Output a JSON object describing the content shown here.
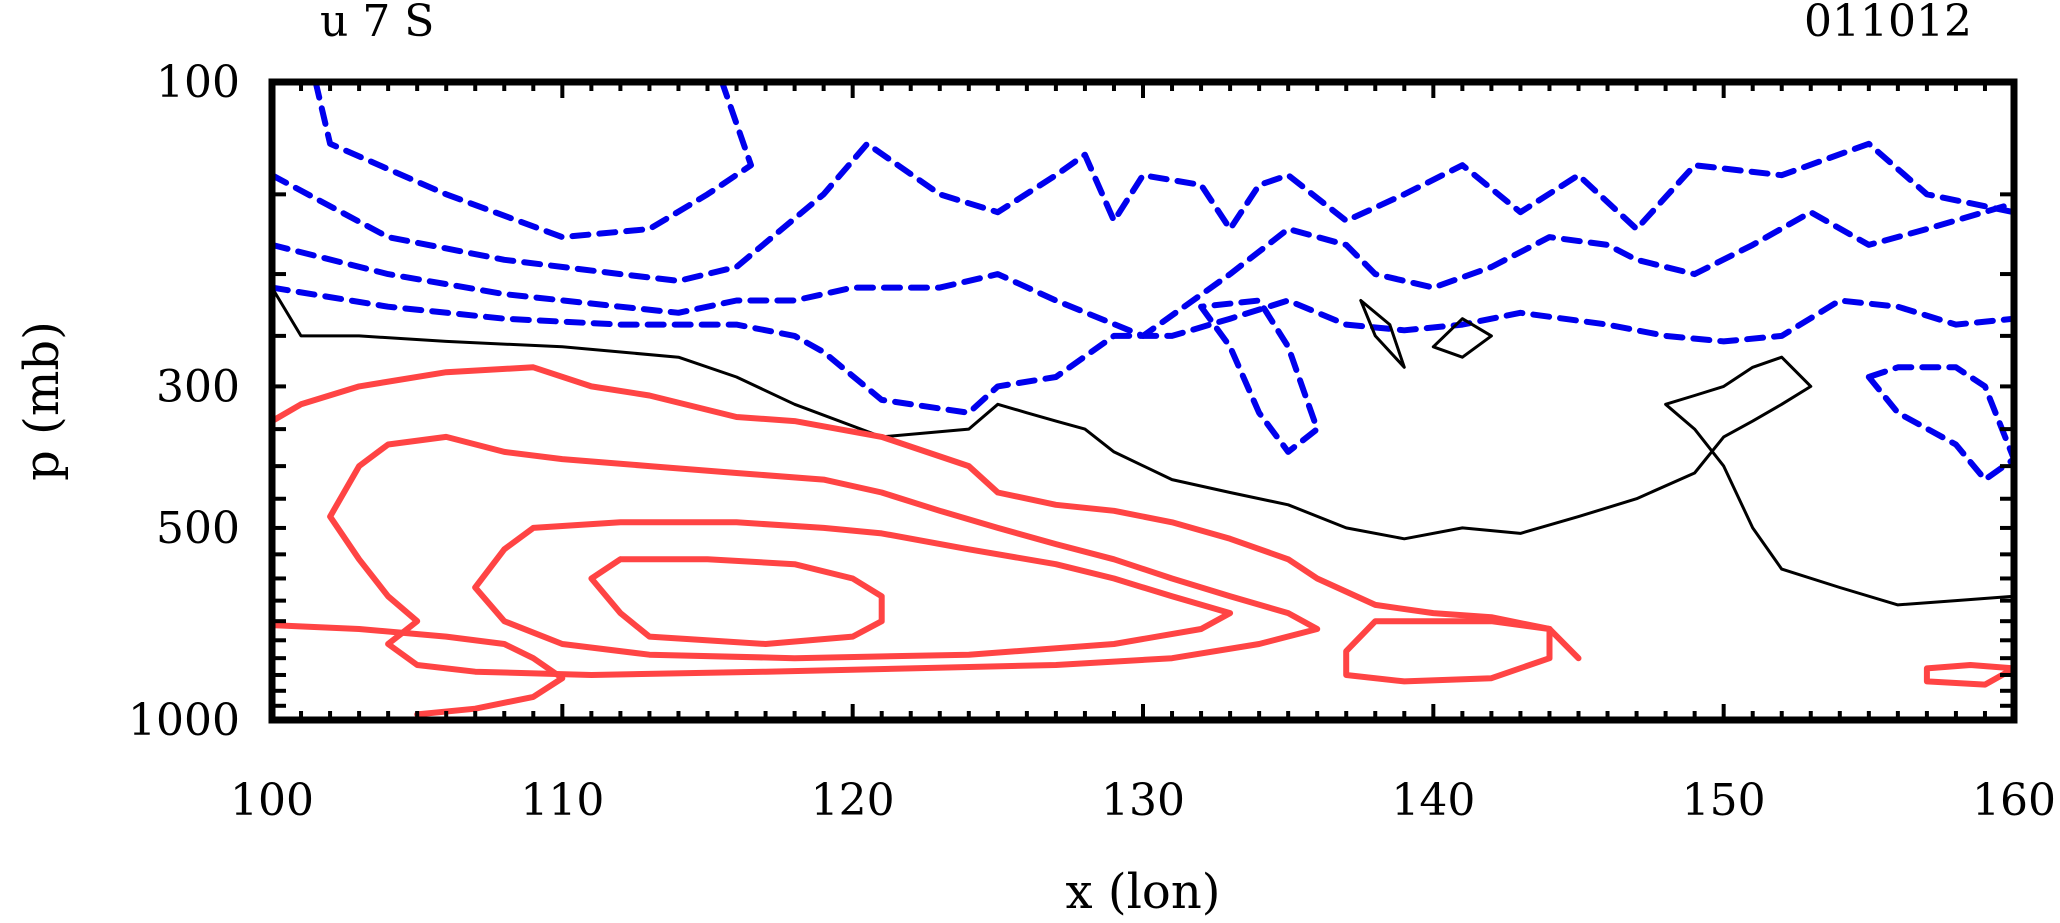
{
  "chart_data": {
    "type": "contour",
    "title_left": "u 7 S",
    "title_right": "011012",
    "xlabel": "x (lon)",
    "ylabel": "p (mb)",
    "xlim": [
      100,
      160
    ],
    "ylim": [
      1000,
      100
    ],
    "y_scale": "log",
    "x_ticks": [
      "100",
      "110",
      "120",
      "130",
      "140",
      "150",
      "160"
    ],
    "y_ticks": [
      "100",
      "300",
      "500",
      "1000"
    ],
    "colors": {
      "negative": "#0000ee",
      "zero": "#000000",
      "positive": "#ff4444"
    },
    "series": [
      {
        "sign": "negative",
        "style": "dashed",
        "contours": [
          [
            [
              101.5,
              100
            ],
            [
              102,
              125
            ],
            [
              106,
              150
            ],
            [
              110,
              175
            ],
            [
              113,
              170
            ],
            [
              115,
              150
            ],
            [
              116.5,
              135
            ],
            [
              115.5,
              100
            ]
          ],
          [
            [
              100,
              140
            ],
            [
              104,
              175
            ],
            [
              108,
              190
            ],
            [
              112,
              200
            ],
            [
              114,
              205
            ],
            [
              116,
              195
            ],
            [
              119,
              150
            ],
            [
              120.5,
              125
            ],
            [
              123,
              150
            ],
            [
              125,
              160
            ],
            [
              127,
              140
            ],
            [
              128,
              130
            ],
            [
              129,
              165
            ],
            [
              130,
              140
            ],
            [
              132,
              145
            ],
            [
              133,
              170
            ],
            [
              134,
              145
            ],
            [
              135,
              140
            ],
            [
              137,
              165
            ],
            [
              139,
              150
            ],
            [
              141,
              135
            ],
            [
              143,
              160
            ],
            [
              145,
              140
            ],
            [
              147,
              170
            ],
            [
              149,
              135
            ],
            [
              152,
              140
            ],
            [
              155,
              125
            ],
            [
              157,
              150
            ],
            [
              160,
              160
            ]
          ],
          [
            [
              100,
              180
            ],
            [
              104,
              200
            ],
            [
              108,
              215
            ],
            [
              112,
              225
            ],
            [
              114,
              230
            ],
            [
              116,
              220
            ],
            [
              118,
              220
            ],
            [
              120,
              210
            ],
            [
              123,
              210
            ],
            [
              125,
              200
            ],
            [
              127,
              220
            ],
            [
              130,
              250
            ],
            [
              133,
              200
            ],
            [
              135,
              170
            ],
            [
              137,
              180
            ],
            [
              138,
              200
            ],
            [
              140,
              210
            ],
            [
              142,
              195
            ],
            [
              144,
              175
            ],
            [
              146,
              180
            ],
            [
              147,
              190
            ],
            [
              149,
              200
            ],
            [
              151,
              180
            ],
            [
              153,
              160
            ],
            [
              155,
              180
            ],
            [
              157,
              170
            ],
            [
              160,
              155
            ]
          ],
          [
            [
              100,
              210
            ],
            [
              104,
              225
            ],
            [
              108,
              235
            ],
            [
              112,
              240
            ],
            [
              116,
              240
            ],
            [
              118,
              250
            ],
            [
              119,
              265
            ],
            [
              121,
              315
            ],
            [
              124,
              330
            ],
            [
              125,
              300
            ],
            [
              127,
              290
            ],
            [
              129,
              250
            ],
            [
              131,
              250
            ],
            [
              133,
              235
            ],
            [
              135,
              220
            ],
            [
              137,
              240
            ],
            [
              139,
              245
            ],
            [
              141,
              240
            ],
            [
              143,
              230
            ],
            [
              146,
              240
            ],
            [
              148,
              250
            ],
            [
              150,
              255
            ],
            [
              152,
              250
            ],
            [
              154,
              220
            ],
            [
              156,
              225
            ],
            [
              158,
              240
            ],
            [
              160,
              235
            ]
          ],
          [
            [
              132,
              225
            ],
            [
              133,
              260
            ],
            [
              134,
              330
            ],
            [
              135,
              380
            ],
            [
              136,
              350
            ],
            [
              135,
              260
            ],
            [
              134,
              220
            ],
            [
              132,
              225
            ]
          ],
          [
            [
              155,
              290
            ],
            [
              156,
              330
            ],
            [
              158,
              370
            ],
            [
              159,
              420
            ],
            [
              160,
              390
            ],
            [
              159,
              300
            ],
            [
              158,
              280
            ],
            [
              156,
              280
            ],
            [
              155,
              290
            ]
          ]
        ]
      },
      {
        "sign": "zero",
        "style": "solid",
        "contours": [
          [
            [
              100,
              210
            ],
            [
              101,
              250
            ],
            [
              103,
              250
            ],
            [
              106,
              255
            ],
            [
              110,
              260
            ],
            [
              114,
              270
            ],
            [
              116,
              290
            ],
            [
              118,
              320
            ],
            [
              121,
              360
            ],
            [
              124,
              350
            ],
            [
              125,
              320
            ],
            [
              126,
              330
            ],
            [
              127,
              340
            ],
            [
              128,
              350
            ],
            [
              129,
              380
            ],
            [
              131,
              420
            ],
            [
              133,
              440
            ],
            [
              135,
              460
            ],
            [
              137,
              500
            ],
            [
              139,
              520
            ],
            [
              141,
              500
            ],
            [
              143,
              510
            ],
            [
              145,
              480
            ],
            [
              147,
              450
            ],
            [
              149,
              410
            ],
            [
              150,
              360
            ],
            [
              151,
              340
            ],
            [
              152,
              320
            ],
            [
              153,
              300
            ],
            [
              152,
              270
            ],
            [
              151,
              280
            ],
            [
              150,
              300
            ],
            [
              149,
              310
            ],
            [
              148,
              320
            ],
            [
              149,
              350
            ],
            [
              150,
              400
            ],
            [
              151,
              500
            ],
            [
              152,
              580
            ],
            [
              154,
              620
            ],
            [
              156,
              660
            ],
            [
              158,
              650
            ],
            [
              160,
              640
            ]
          ],
          [
            [
              137.5,
              220
            ],
            [
              138,
              250
            ],
            [
              139,
              280
            ],
            [
              138.5,
              240
            ],
            [
              137.5,
              220
            ]
          ],
          [
            [
              140,
              260
            ],
            [
              141,
              270
            ],
            [
              142,
              250
            ],
            [
              141,
              235
            ],
            [
              140,
              260
            ]
          ]
        ]
      },
      {
        "sign": "positive",
        "style": "solid",
        "contours": [
          [
            [
              100,
              340
            ],
            [
              101,
              320
            ],
            [
              103,
              300
            ],
            [
              106,
              285
            ],
            [
              109,
              280
            ],
            [
              111,
              300
            ],
            [
              113,
              310
            ],
            [
              116,
              335
            ],
            [
              118,
              340
            ],
            [
              121,
              360
            ],
            [
              124,
              400
            ],
            [
              125,
              440
            ],
            [
              127,
              460
            ],
            [
              129,
              470
            ],
            [
              131,
              490
            ],
            [
              133,
              520
            ],
            [
              135,
              560
            ],
            [
              136,
              600
            ],
            [
              138,
              660
            ],
            [
              140,
              680
            ],
            [
              142,
              690
            ],
            [
              144,
              720
            ],
            [
              145,
              800
            ]
          ],
          [
            [
              103,
              400
            ],
            [
              104,
              370
            ],
            [
              106,
              360
            ],
            [
              108,
              380
            ],
            [
              110,
              390
            ],
            [
              113,
              400
            ],
            [
              116,
              410
            ],
            [
              119,
              420
            ],
            [
              121,
              440
            ],
            [
              123,
              470
            ],
            [
              125,
              500
            ],
            [
              127,
              530
            ],
            [
              129,
              560
            ],
            [
              131,
              600
            ],
            [
              133,
              640
            ],
            [
              135,
              680
            ],
            [
              136,
              720
            ],
            [
              134,
              760
            ],
            [
              131,
              800
            ],
            [
              127,
              820
            ],
            [
              122,
              830
            ],
            [
              117,
              840
            ],
            [
              111,
              850
            ],
            [
              107,
              840
            ],
            [
              105,
              820
            ],
            [
              104,
              760
            ],
            [
              105,
              700
            ],
            [
              104,
              640
            ],
            [
              103,
              560
            ],
            [
              102,
              480
            ],
            [
              103,
              400
            ]
          ],
          [
            [
              109,
              500
            ],
            [
              112,
              490
            ],
            [
              116,
              490
            ],
            [
              119,
              500
            ],
            [
              121,
              510
            ],
            [
              124,
              540
            ],
            [
              127,
              570
            ],
            [
              129,
              600
            ],
            [
              131,
              640
            ],
            [
              133,
              680
            ],
            [
              132,
              720
            ],
            [
              129,
              760
            ],
            [
              124,
              790
            ],
            [
              118,
              800
            ],
            [
              113,
              790
            ],
            [
              110,
              760
            ],
            [
              108,
              700
            ],
            [
              107,
              620
            ],
            [
              108,
              540
            ],
            [
              109,
              500
            ]
          ],
          [
            [
              112,
              560
            ],
            [
              115,
              560
            ],
            [
              118,
              570
            ],
            [
              120,
              600
            ],
            [
              121,
              640
            ],
            [
              121,
              700
            ],
            [
              120,
              740
            ],
            [
              117,
              760
            ],
            [
              113,
              740
            ],
            [
              112,
              680
            ],
            [
              111,
              600
            ],
            [
              112,
              560
            ]
          ],
          [
            [
              100,
              710
            ],
            [
              103,
              720
            ],
            [
              106,
              740
            ],
            [
              108,
              760
            ],
            [
              109,
              800
            ],
            [
              110,
              860
            ],
            [
              109,
              920
            ],
            [
              107,
              960
            ],
            [
              105,
              980
            ]
          ],
          [
            [
              138,
              700
            ],
            [
              142,
              700
            ],
            [
              144,
              720
            ],
            [
              144,
              800
            ],
            [
              142,
              860
            ],
            [
              139,
              870
            ],
            [
              137,
              850
            ],
            [
              137,
              780
            ],
            [
              138,
              700
            ]
          ],
          [
            [
              157,
              830
            ],
            [
              158.5,
              820
            ],
            [
              160,
              830
            ],
            [
              159,
              880
            ],
            [
              157,
              870
            ],
            [
              157,
              830
            ]
          ]
        ]
      }
    ]
  }
}
